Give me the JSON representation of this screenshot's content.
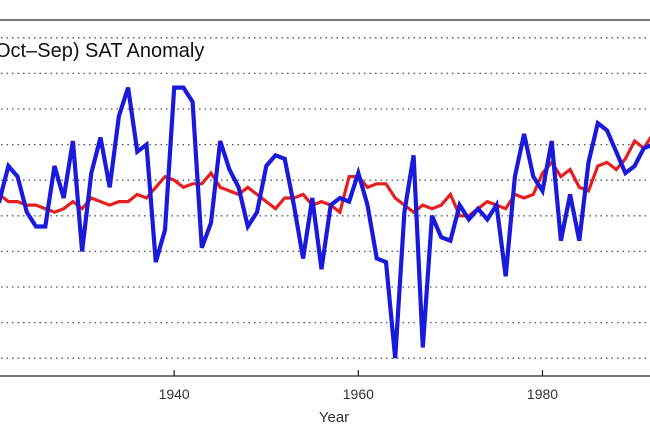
{
  "chart_data": {
    "type": "line",
    "title": "Oct–Sep) SAT Anomaly",
    "xlabel": "Year",
    "ylabel": "",
    "xlim": [
      1920,
      1992
    ],
    "ylim": [
      -2.75,
      2.25
    ],
    "x_ticks": [
      1940,
      1960,
      1980
    ],
    "gridlines_y": [
      -2.5,
      -2,
      -1.5,
      -1,
      -0.5,
      0,
      0.5,
      1,
      1.5,
      2
    ],
    "grid": "horizontal-dotted",
    "series": [
      {
        "color": "#e61e1e",
        "x": [
          1920,
          1921,
          1922,
          1923,
          1924,
          1925,
          1926,
          1927,
          1928,
          1929,
          1930,
          1931,
          1932,
          1933,
          1934,
          1935,
          1936,
          1937,
          1938,
          1939,
          1940,
          1941,
          1942,
          1943,
          1944,
          1945,
          1946,
          1947,
          1948,
          1949,
          1950,
          1951,
          1952,
          1953,
          1954,
          1955,
          1956,
          1957,
          1958,
          1959,
          1960,
          1961,
          1962,
          1963,
          1964,
          1965,
          1966,
          1967,
          1968,
          1969,
          1970,
          1971,
          1972,
          1973,
          1974,
          1975,
          1976,
          1977,
          1978,
          1979,
          1980,
          1981,
          1982,
          1983,
          1984,
          1985,
          1986,
          1987,
          1988,
          1989,
          1990,
          1991,
          1992
        ],
        "values": [
          -0.15,
          -0.2,
          -0.3,
          -0.3,
          -0.35,
          -0.35,
          -0.4,
          -0.45,
          -0.4,
          -0.3,
          -0.4,
          -0.25,
          -0.3,
          -0.35,
          -0.3,
          -0.3,
          -0.2,
          -0.25,
          -0.1,
          0.05,
          0.0,
          -0.1,
          -0.05,
          -0.05,
          0.1,
          -0.1,
          -0.15,
          -0.2,
          -0.1,
          -0.2,
          -0.3,
          -0.4,
          -0.25,
          -0.25,
          -0.2,
          -0.35,
          -0.3,
          -0.35,
          -0.45,
          0.05,
          0.05,
          -0.1,
          -0.05,
          -0.05,
          -0.25,
          -0.35,
          -0.45,
          -0.35,
          -0.4,
          -0.35,
          -0.2,
          -0.5,
          -0.5,
          -0.4,
          -0.3,
          -0.35,
          -0.4,
          -0.2,
          -0.25,
          -0.2,
          0.1,
          0.25,
          0.05,
          0.15,
          -0.1,
          -0.15,
          0.2,
          0.25,
          0.15,
          0.3,
          0.55,
          0.45,
          0.65
        ]
      },
      {
        "color": "#1a1adc",
        "x": [
          1920,
          1921,
          1922,
          1923,
          1924,
          1925,
          1926,
          1927,
          1928,
          1929,
          1930,
          1931,
          1932,
          1933,
          1934,
          1935,
          1936,
          1937,
          1938,
          1939,
          1940,
          1941,
          1942,
          1943,
          1944,
          1945,
          1946,
          1947,
          1948,
          1949,
          1950,
          1951,
          1952,
          1953,
          1954,
          1955,
          1956,
          1957,
          1958,
          1959,
          1960,
          1961,
          1962,
          1963,
          1964,
          1965,
          1966,
          1967,
          1968,
          1969,
          1970,
          1971,
          1972,
          1973,
          1974,
          1975,
          1976,
          1977,
          1978,
          1979,
          1980,
          1981,
          1982,
          1983,
          1984,
          1985,
          1986,
          1987,
          1988,
          1989,
          1990,
          1991,
          1992
        ],
        "values": [
          -0.4,
          -0.3,
          0.2,
          0.05,
          -0.45,
          -0.65,
          -0.65,
          0.2,
          -0.25,
          0.55,
          -1.0,
          0.1,
          0.6,
          -0.1,
          0.9,
          1.3,
          0.4,
          0.5,
          -1.15,
          -0.7,
          1.3,
          1.3,
          1.1,
          -0.95,
          -0.6,
          0.55,
          0.15,
          -0.1,
          -0.65,
          -0.45,
          0.2,
          0.35,
          0.3,
          -0.35,
          -1.1,
          -0.25,
          -1.25,
          -0.35,
          -0.25,
          -0.3,
          0.1,
          -0.35,
          -1.1,
          -1.15,
          -2.5,
          -0.45,
          0.35,
          -2.35,
          -0.5,
          -0.8,
          -0.85,
          -0.35,
          -0.55,
          -0.4,
          -0.55,
          -0.35,
          -1.35,
          0.05,
          0.65,
          0.05,
          -0.15,
          0.55,
          -0.85,
          -0.2,
          -0.85,
          0.25,
          0.8,
          0.7,
          0.4,
          0.1,
          0.2,
          0.45,
          0.5
        ]
      }
    ]
  }
}
